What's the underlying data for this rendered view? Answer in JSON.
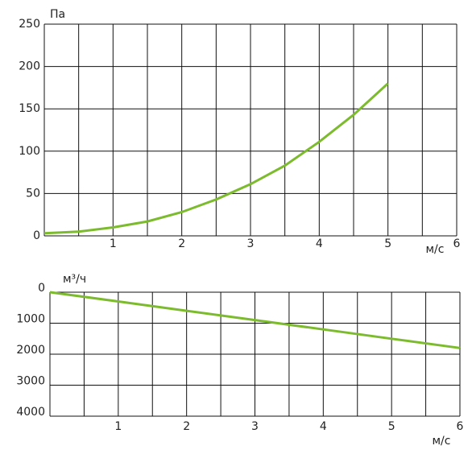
{
  "chart_data": [
    {
      "type": "line",
      "y_label": "Па",
      "x_label": "м/с",
      "x": [
        0,
        0.5,
        1,
        1.5,
        2,
        2.5,
        3,
        3.5,
        4,
        4.5,
        5
      ],
      "series": [
        {
          "color": "#7dbb2e",
          "values": [
            3,
            5,
            10,
            17,
            28,
            43,
            61,
            83,
            111,
            143,
            180
          ]
        }
      ],
      "xlim": [
        0,
        6
      ],
      "xticks": [
        1,
        2,
        3,
        4,
        5,
        6
      ],
      "x_minor_ticks": [
        0.5,
        1.5,
        2.5,
        3.5,
        4.5,
        5.5
      ],
      "ylim": [
        0,
        250
      ],
      "yticks": [
        0,
        50,
        100,
        150,
        200,
        250
      ],
      "grid": true
    },
    {
      "type": "line",
      "y_label": "м³/ч",
      "x_label": "м/с",
      "x": [
        0,
        1,
        2,
        3,
        4,
        5,
        6
      ],
      "series": [
        {
          "color": "#7dbb2e",
          "values": [
            0,
            300,
            600,
            900,
            1200,
            1500,
            1800
          ]
        }
      ],
      "xlim": [
        0,
        6
      ],
      "xticks": [
        1,
        2,
        3,
        4,
        5,
        6
      ],
      "x_minor_ticks": [
        0.5,
        1.5,
        2.5,
        3.5,
        4.5,
        5.5
      ],
      "ylim": [
        4000,
        0
      ],
      "yticks": [
        0,
        1000,
        2000,
        3000,
        4000
      ],
      "grid": true
    }
  ]
}
